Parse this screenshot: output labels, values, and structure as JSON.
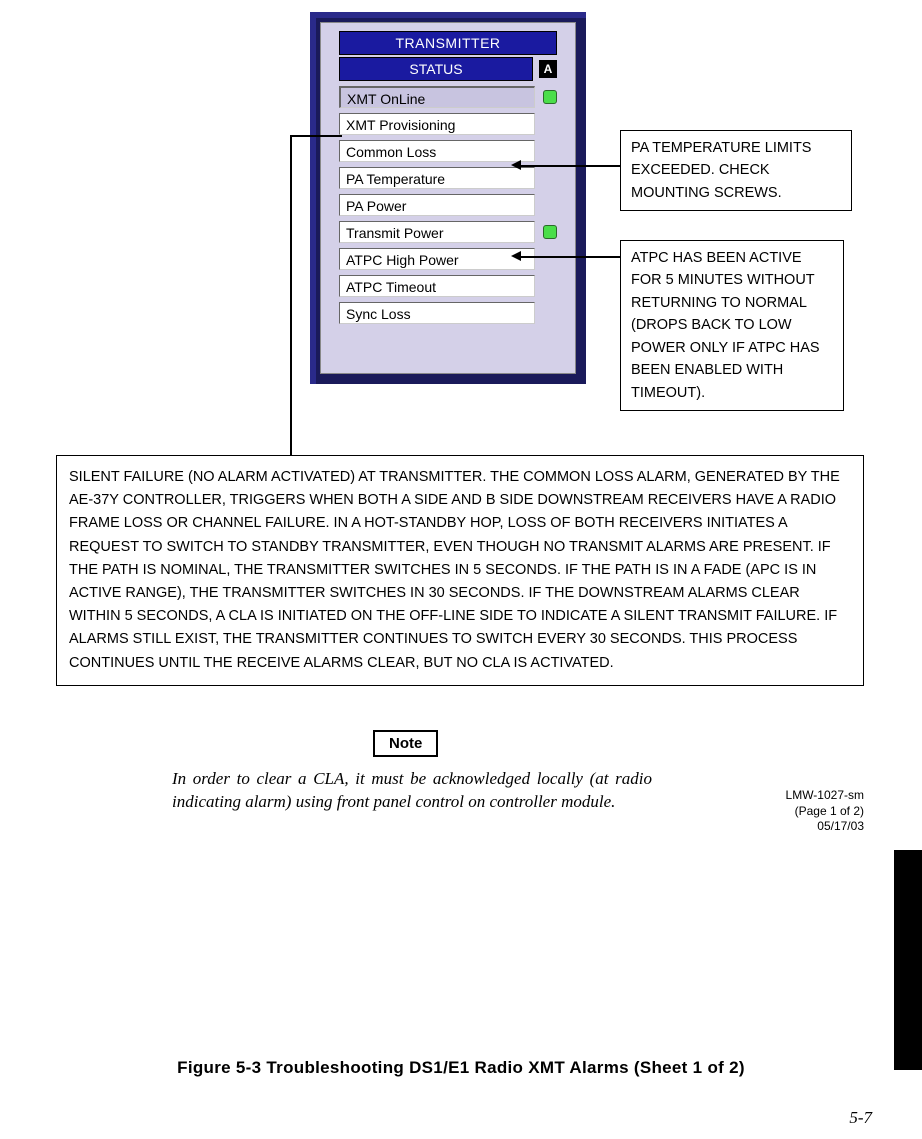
{
  "panel": {
    "title": "TRANSMITTER",
    "status_label": "STATUS",
    "side_indicator": "A",
    "items": [
      {
        "label": "XMT OnLine",
        "highlight": true,
        "led": "green"
      },
      {
        "label": "XMT Provisioning",
        "highlight": false,
        "led": null
      },
      {
        "label": "Common Loss",
        "highlight": false,
        "led": null
      },
      {
        "label": "PA Temperature",
        "highlight": false,
        "led": null
      },
      {
        "label": "PA Power",
        "highlight": false,
        "led": null
      },
      {
        "label": "Transmit Power",
        "highlight": false,
        "led": "green"
      },
      {
        "label": "ATPC High Power",
        "highlight": false,
        "led": null
      },
      {
        "label": "ATPC Timeout",
        "highlight": false,
        "led": null
      },
      {
        "label": "Sync Loss",
        "highlight": false,
        "led": null
      }
    ]
  },
  "callouts": {
    "pa_temp": "PA TEMPERATURE LIMITS EXCEEDED. CHECK MOUNTING SCREWS.",
    "atpc": "ATPC HAS BEEN ACTIVE FOR 5 MINUTES WITHOUT RETURNING TO NORMAL (DROPS BACK TO LOW POWER ONLY IF ATPC HAS BEEN ENABLED WITH TIMEOUT).",
    "silent_failure": "SILENT FAILURE (NO ALARM ACTIVATED) AT TRANSMITTER. THE COMMON LOSS ALARM, GENERATED BY THE AE-37Y CONTROLLER, TRIGGERS WHEN BOTH A SIDE AND B SIDE DOWNSTREAM RECEIVERS HAVE A RADIO FRAME LOSS OR CHANNEL FAILURE. IN A HOT-STANDBY HOP, LOSS OF BOTH RECEIVERS INITIATES A REQUEST TO SWITCH TO STANDBY TRANSMITTER, EVEN THOUGH NO TRANSMIT ALARMS ARE PRESENT. IF THE PATH IS NOMINAL, THE TRANSMITTER SWITCHES IN 5 SECONDS. IF THE PATH IS IN A FADE (APC IS IN ACTIVE RANGE), THE TRANSMITTER SWITCHES IN 30 SECONDS. IF THE DOWNSTREAM ALARMS CLEAR WITHIN 5 SECONDS, A CLA IS INITIATED ON THE OFF-LINE SIDE TO INDICATE A SILENT TRANSMIT FAILURE. IF ALARMS STILL EXIST, THE TRANSMITTER CONTINUES TO SWITCH EVERY 30 SECONDS. THIS PROCESS CONTINUES UNTIL THE RECEIVE ALARMS CLEAR, BUT NO CLA IS ACTIVATED."
  },
  "note": {
    "label": "Note",
    "text": "In order to clear a CLA, it must be acknowledged locally (at radio indicating alarm) using front panel control on controller module."
  },
  "doc_id": {
    "line1": "LMW-1027-sm",
    "line2": "(Page 1 of 2)",
    "line3": "05/17/03"
  },
  "figure_caption": "Figure 5-3  Troubleshooting DS1/E1 Radio XMT Alarms (Sheet 1 of 2)",
  "page_number": "5-7",
  "colors": {
    "panel_frame": "#2a2a8a",
    "header_bg": "#1a1aa0",
    "panel_bg": "#d4d0e8",
    "led_green": "#4ade4a"
  }
}
